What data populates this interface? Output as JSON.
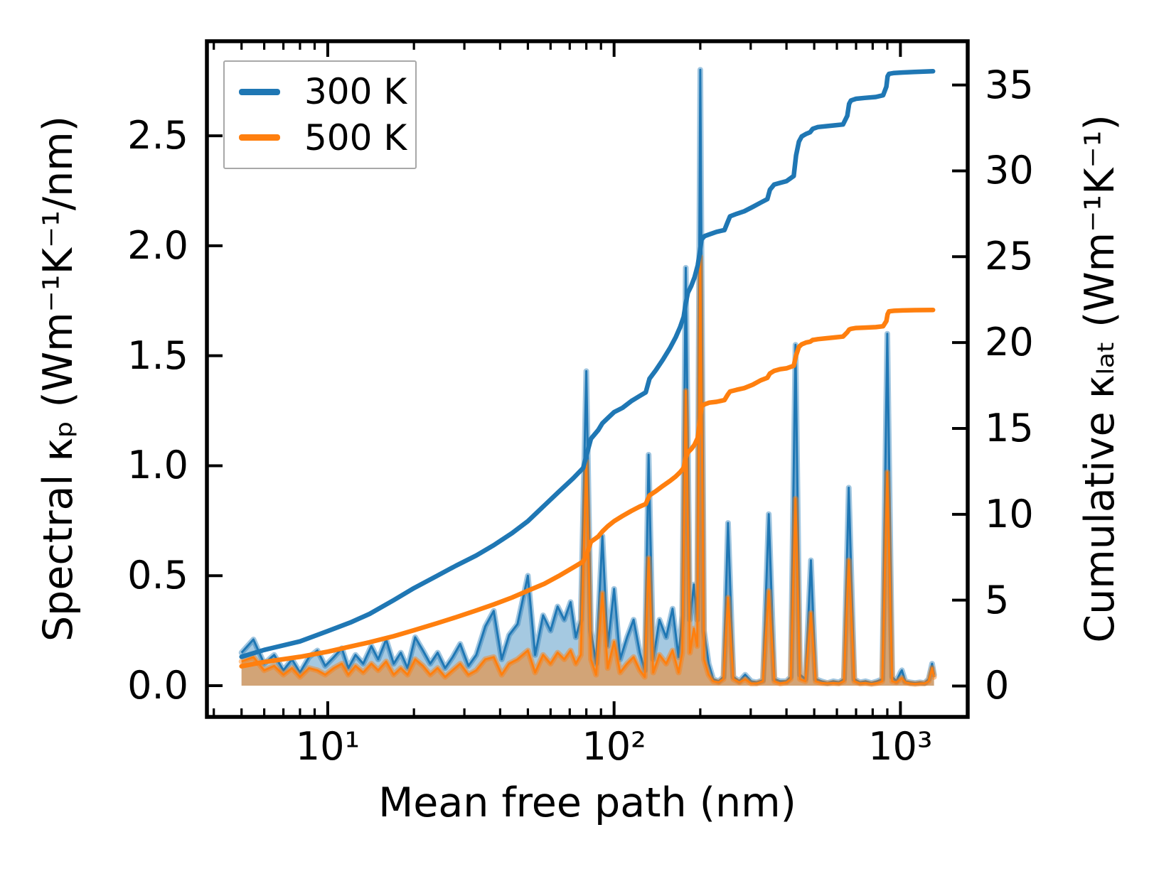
{
  "chart_data": {
    "type": "area",
    "title": "",
    "xlabel": "Mean free path (nm)",
    "x_scale": "log",
    "xlim_log10": [
      0.578,
      3.235
    ],
    "grid": false,
    "axes": {
      "left": {
        "label": "Spectral κₚ (Wm⁻¹K⁻¹/nm)",
        "lim": [
          -0.142,
          2.93
        ],
        "ticks": [
          {
            "v": 0.0,
            "label": "0.0"
          },
          {
            "v": 0.5,
            "label": "0.5"
          },
          {
            "v": 1.0,
            "label": "1.0"
          },
          {
            "v": 1.5,
            "label": "1.5"
          },
          {
            "v": 2.0,
            "label": "2.0"
          },
          {
            "v": 2.5,
            "label": "2.5"
          }
        ]
      },
      "right": {
        "label": "Cumulative κₗₐₜ (Wm⁻¹K⁻¹)",
        "lim": [
          -1.8,
          37.55
        ],
        "ticks": [
          {
            "v": 0,
            "label": "0"
          },
          {
            "v": 5,
            "label": "5"
          },
          {
            "v": 10,
            "label": "10"
          },
          {
            "v": 15,
            "label": "15"
          },
          {
            "v": 20,
            "label": "20"
          },
          {
            "v": 25,
            "label": "25"
          },
          {
            "v": 30,
            "label": "30"
          },
          {
            "v": 35,
            "label": "35"
          }
        ]
      }
    },
    "xticks": [
      {
        "v": 10,
        "label": "10¹"
      },
      {
        "v": 100,
        "label": "10²"
      },
      {
        "v": 1000,
        "label": "10³"
      }
    ],
    "xminorticks": [
      4,
      5,
      6,
      7,
      8,
      9,
      20,
      30,
      40,
      50,
      60,
      70,
      80,
      90,
      200,
      300,
      400,
      500,
      600,
      700,
      800,
      900
    ],
    "legend": {
      "position": "upper left",
      "entries": [
        {
          "label": "300 K",
          "color": "#1f77b4"
        },
        {
          "label": "500 K",
          "color": "#ff7f0e"
        }
      ]
    },
    "colors": {
      "blue": "#1f77b4",
      "orange": "#ff7f0e",
      "spine": "#000000",
      "legend_border": "#a8a8a8"
    },
    "spectral_points_xy300y500": [
      [
        5.0,
        0.15,
        0.11
      ],
      [
        5.5,
        0.21,
        0.13
      ],
      [
        6.0,
        0.1,
        0.07
      ],
      [
        6.5,
        0.14,
        0.09
      ],
      [
        7.0,
        0.07,
        0.05
      ],
      [
        7.5,
        0.12,
        0.08
      ],
      [
        8.0,
        0.06,
        0.04
      ],
      [
        8.6,
        0.13,
        0.08
      ],
      [
        9.2,
        0.16,
        0.07
      ],
      [
        9.8,
        0.09,
        0.05
      ],
      [
        10.5,
        0.13,
        0.08
      ],
      [
        11.2,
        0.17,
        0.1
      ],
      [
        11.8,
        0.08,
        0.05
      ],
      [
        12.5,
        0.14,
        0.09
      ],
      [
        13.3,
        0.1,
        0.06
      ],
      [
        14.2,
        0.18,
        0.1
      ],
      [
        15.0,
        0.12,
        0.07
      ],
      [
        16.0,
        0.21,
        0.11
      ],
      [
        17.0,
        0.1,
        0.05
      ],
      [
        18.0,
        0.15,
        0.08
      ],
      [
        19.0,
        0.08,
        0.05
      ],
      [
        20.2,
        0.22,
        0.12
      ],
      [
        21.5,
        0.16,
        0.09
      ],
      [
        22.8,
        0.1,
        0.05
      ],
      [
        24.2,
        0.15,
        0.08
      ],
      [
        25.7,
        0.08,
        0.04
      ],
      [
        27.3,
        0.13,
        0.07
      ],
      [
        29.0,
        0.19,
        0.1
      ],
      [
        31.0,
        0.09,
        0.05
      ],
      [
        33.0,
        0.14,
        0.07
      ],
      [
        35.5,
        0.27,
        0.12
      ],
      [
        38.0,
        0.34,
        0.13
      ],
      [
        40.5,
        0.12,
        0.05
      ],
      [
        43.0,
        0.23,
        0.1
      ],
      [
        46.0,
        0.28,
        0.12
      ],
      [
        50.0,
        0.5,
        0.16
      ],
      [
        53.0,
        0.14,
        0.06
      ],
      [
        56.5,
        0.32,
        0.14
      ],
      [
        60.0,
        0.25,
        0.1
      ],
      [
        63.5,
        0.36,
        0.15
      ],
      [
        67.0,
        0.3,
        0.12
      ],
      [
        70.5,
        0.38,
        0.16
      ],
      [
        73.5,
        0.22,
        0.1
      ],
      [
        76.5,
        0.3,
        0.14
      ],
      [
        80.0,
        1.43,
        1.02
      ],
      [
        83.0,
        0.25,
        0.12
      ],
      [
        86.5,
        0.1,
        0.05
      ],
      [
        91.0,
        0.68,
        0.42
      ],
      [
        95.0,
        0.18,
        0.08
      ],
      [
        100,
        0.44,
        0.2
      ],
      [
        105,
        0.12,
        0.06
      ],
      [
        111,
        0.22,
        0.1
      ],
      [
        117,
        0.3,
        0.13
      ],
      [
        123,
        0.15,
        0.07
      ],
      [
        128,
        0.07,
        0.04
      ],
      [
        132,
        1.05,
        0.58
      ],
      [
        137,
        0.12,
        0.06
      ],
      [
        144,
        0.3,
        0.14
      ],
      [
        152,
        0.22,
        0.1
      ],
      [
        160,
        0.35,
        0.16
      ],
      [
        168,
        0.13,
        0.06
      ],
      [
        173,
        0.32,
        0.15
      ],
      [
        178,
        1.9,
        1.34
      ],
      [
        184,
        0.3,
        0.15
      ],
      [
        190,
        0.46,
        0.26
      ],
      [
        195,
        0.3,
        0.18
      ],
      [
        200,
        2.8,
        1.95
      ],
      [
        206,
        0.25,
        0.12
      ],
      [
        214,
        0.1,
        0.05
      ],
      [
        222,
        0.03,
        0.02
      ],
      [
        232,
        0.02,
        0.015
      ],
      [
        241,
        0.04,
        0.03
      ],
      [
        250,
        0.74,
        0.4
      ],
      [
        261,
        0.04,
        0.03
      ],
      [
        274,
        0.02,
        0.015
      ],
      [
        287,
        0.05,
        0.03
      ],
      [
        301,
        0.02,
        0.01
      ],
      [
        315,
        0.015,
        0.01
      ],
      [
        331,
        0.025,
        0.02
      ],
      [
        347,
        0.78,
        0.43
      ],
      [
        363,
        0.03,
        0.02
      ],
      [
        380,
        0.02,
        0.01
      ],
      [
        400,
        0.02,
        0.015
      ],
      [
        414,
        0.04,
        0.03
      ],
      [
        430,
        1.55,
        0.85
      ],
      [
        446,
        0.05,
        0.03
      ],
      [
        466,
        0.03,
        0.02
      ],
      [
        487,
        0.57,
        0.33
      ],
      [
        506,
        0.03,
        0.02
      ],
      [
        530,
        0.02,
        0.012
      ],
      [
        556,
        0.012,
        0.01
      ],
      [
        583,
        0.02,
        0.012
      ],
      [
        610,
        0.015,
        0.01
      ],
      [
        635,
        0.03,
        0.02
      ],
      [
        660,
        0.9,
        0.57
      ],
      [
        690,
        0.03,
        0.02
      ],
      [
        722,
        0.015,
        0.01
      ],
      [
        756,
        0.02,
        0.012
      ],
      [
        792,
        0.012,
        0.008
      ],
      [
        830,
        0.02,
        0.012
      ],
      [
        864,
        0.03,
        0.02
      ],
      [
        900,
        1.6,
        0.97
      ],
      [
        936,
        0.04,
        0.02
      ],
      [
        968,
        0.02,
        0.015
      ],
      [
        1000,
        0.06,
        0.03
      ],
      [
        1012,
        0.07,
        0.035
      ],
      [
        1040,
        0.02,
        0.015
      ],
      [
        1080,
        0.015,
        0.01
      ],
      [
        1125,
        0.012,
        0.008
      ],
      [
        1170,
        0.015,
        0.01
      ],
      [
        1215,
        0.012,
        0.01
      ],
      [
        1255,
        0.03,
        0.02
      ],
      [
        1290,
        0.1,
        0.08
      ],
      [
        1310,
        0.05,
        0.04
      ]
    ],
    "cumulative_points_xc300c500": [
      [
        5,
        1.7,
        1.15
      ],
      [
        6,
        2.1,
        1.4
      ],
      [
        8,
        2.6,
        1.7
      ],
      [
        10,
        3.2,
        2.0
      ],
      [
        12,
        3.7,
        2.3
      ],
      [
        14,
        4.2,
        2.55
      ],
      [
        17,
        5.0,
        2.9
      ],
      [
        20,
        5.7,
        3.25
      ],
      [
        24,
        6.4,
        3.65
      ],
      [
        28,
        7.0,
        4.0
      ],
      [
        33,
        7.6,
        4.4
      ],
      [
        38,
        8.2,
        4.75
      ],
      [
        44,
        8.9,
        5.15
      ],
      [
        50,
        9.6,
        5.55
      ],
      [
        57,
        10.5,
        5.95
      ],
      [
        64,
        11.3,
        6.4
      ],
      [
        72,
        12.1,
        6.9
      ],
      [
        78,
        12.7,
        7.25
      ],
      [
        80,
        13.4,
        7.6
      ],
      [
        83,
        14.4,
        8.4
      ],
      [
        88,
        14.9,
        8.7
      ],
      [
        91,
        15.3,
        9.0
      ],
      [
        95,
        15.6,
        9.3
      ],
      [
        100,
        15.95,
        9.6
      ],
      [
        107,
        16.2,
        9.9
      ],
      [
        115,
        16.6,
        10.2
      ],
      [
        123,
        16.9,
        10.45
      ],
      [
        129,
        17.1,
        10.6
      ],
      [
        133,
        17.9,
        11.1
      ],
      [
        140,
        18.4,
        11.35
      ],
      [
        148,
        19.0,
        11.65
      ],
      [
        157,
        19.7,
        11.95
      ],
      [
        164,
        20.3,
        12.2
      ],
      [
        170,
        20.9,
        12.45
      ],
      [
        175,
        21.5,
        12.7
      ],
      [
        178,
        22.3,
        13.3
      ],
      [
        181,
        22.9,
        13.6
      ],
      [
        186,
        23.3,
        13.8
      ],
      [
        191,
        23.8,
        14.05
      ],
      [
        196,
        24.5,
        14.45
      ],
      [
        199,
        25.2,
        15.3
      ],
      [
        202,
        26.0,
        16.3
      ],
      [
        207,
        26.2,
        16.4
      ],
      [
        215,
        26.3,
        16.5
      ],
      [
        228,
        26.45,
        16.55
      ],
      [
        243,
        26.55,
        16.65
      ],
      [
        249,
        27.0,
        16.95
      ],
      [
        254,
        27.35,
        17.15
      ],
      [
        268,
        27.5,
        17.25
      ],
      [
        285,
        27.65,
        17.35
      ],
      [
        305,
        27.9,
        17.55
      ],
      [
        325,
        28.15,
        17.8
      ],
      [
        343,
        28.35,
        17.95
      ],
      [
        350,
        28.9,
        18.2
      ],
      [
        362,
        29.2,
        18.35
      ],
      [
        380,
        29.3,
        18.45
      ],
      [
        400,
        29.4,
        18.5
      ],
      [
        424,
        29.7,
        18.65
      ],
      [
        432,
        30.9,
        19.25
      ],
      [
        442,
        31.7,
        19.75
      ],
      [
        452,
        32.0,
        19.9
      ],
      [
        468,
        32.15,
        20.0
      ],
      [
        484,
        32.25,
        20.05
      ],
      [
        494,
        32.45,
        20.15
      ],
      [
        515,
        32.55,
        20.2
      ],
      [
        550,
        32.6,
        20.25
      ],
      [
        590,
        32.65,
        20.3
      ],
      [
        630,
        32.7,
        20.35
      ],
      [
        652,
        33.2,
        20.6
      ],
      [
        662,
        33.9,
        20.75
      ],
      [
        672,
        34.1,
        20.8
      ],
      [
        700,
        34.2,
        20.85
      ],
      [
        750,
        34.25,
        20.87
      ],
      [
        820,
        34.3,
        20.9
      ],
      [
        870,
        34.4,
        20.95
      ],
      [
        893,
        34.9,
        21.25
      ],
      [
        902,
        35.5,
        21.65
      ],
      [
        912,
        35.65,
        21.82
      ],
      [
        950,
        35.7,
        21.85
      ],
      [
        1020,
        35.73,
        21.87
      ],
      [
        1120,
        35.76,
        21.89
      ],
      [
        1300,
        35.8,
        21.9
      ]
    ]
  }
}
